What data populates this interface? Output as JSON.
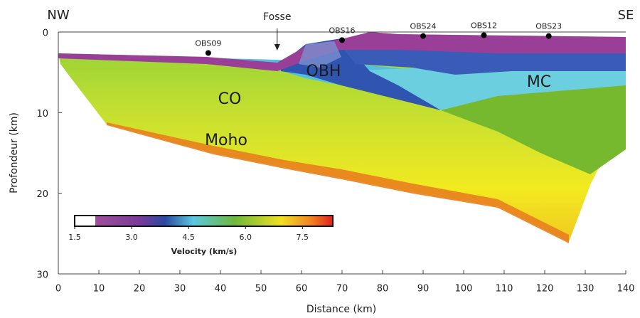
{
  "chart_data": {
    "type": "section",
    "x_label": "Distance (km)",
    "y_label": "Profondeur (km)",
    "left_label": "NW",
    "right_label": "SE",
    "xlim": [
      0,
      140
    ],
    "xticks": [
      0,
      10,
      20,
      30,
      40,
      50,
      60,
      70,
      80,
      90,
      100,
      110,
      120,
      130,
      140
    ],
    "ylim": [
      30,
      0
    ],
    "yticks": [
      0,
      10,
      20,
      30
    ],
    "stations": [
      {
        "label": "OBS09",
        "x": 37,
        "depth": 2.6
      },
      {
        "label": "OBS16",
        "x": 70,
        "depth": 1.0
      },
      {
        "label": "OBS24",
        "x": 90,
        "depth": 0.5
      },
      {
        "label": "OBS12",
        "x": 105,
        "depth": 0.4
      },
      {
        "label": "OBS23",
        "x": 121,
        "depth": 0.5
      }
    ],
    "trench": {
      "label": "Fosse",
      "x": 54
    },
    "regions": [
      "OBH",
      "CO",
      "MC",
      "Moho"
    ],
    "colorbar": {
      "label": "Velocity (km/s)",
      "clim": [
        1.5,
        8.3
      ],
      "ticks": [
        1.5,
        {
          "value": 3,
          "label": "3.0"
        },
        4.5,
        {
          "value": 6,
          "label": "6.0"
        },
        7.5
      ]
    }
  }
}
